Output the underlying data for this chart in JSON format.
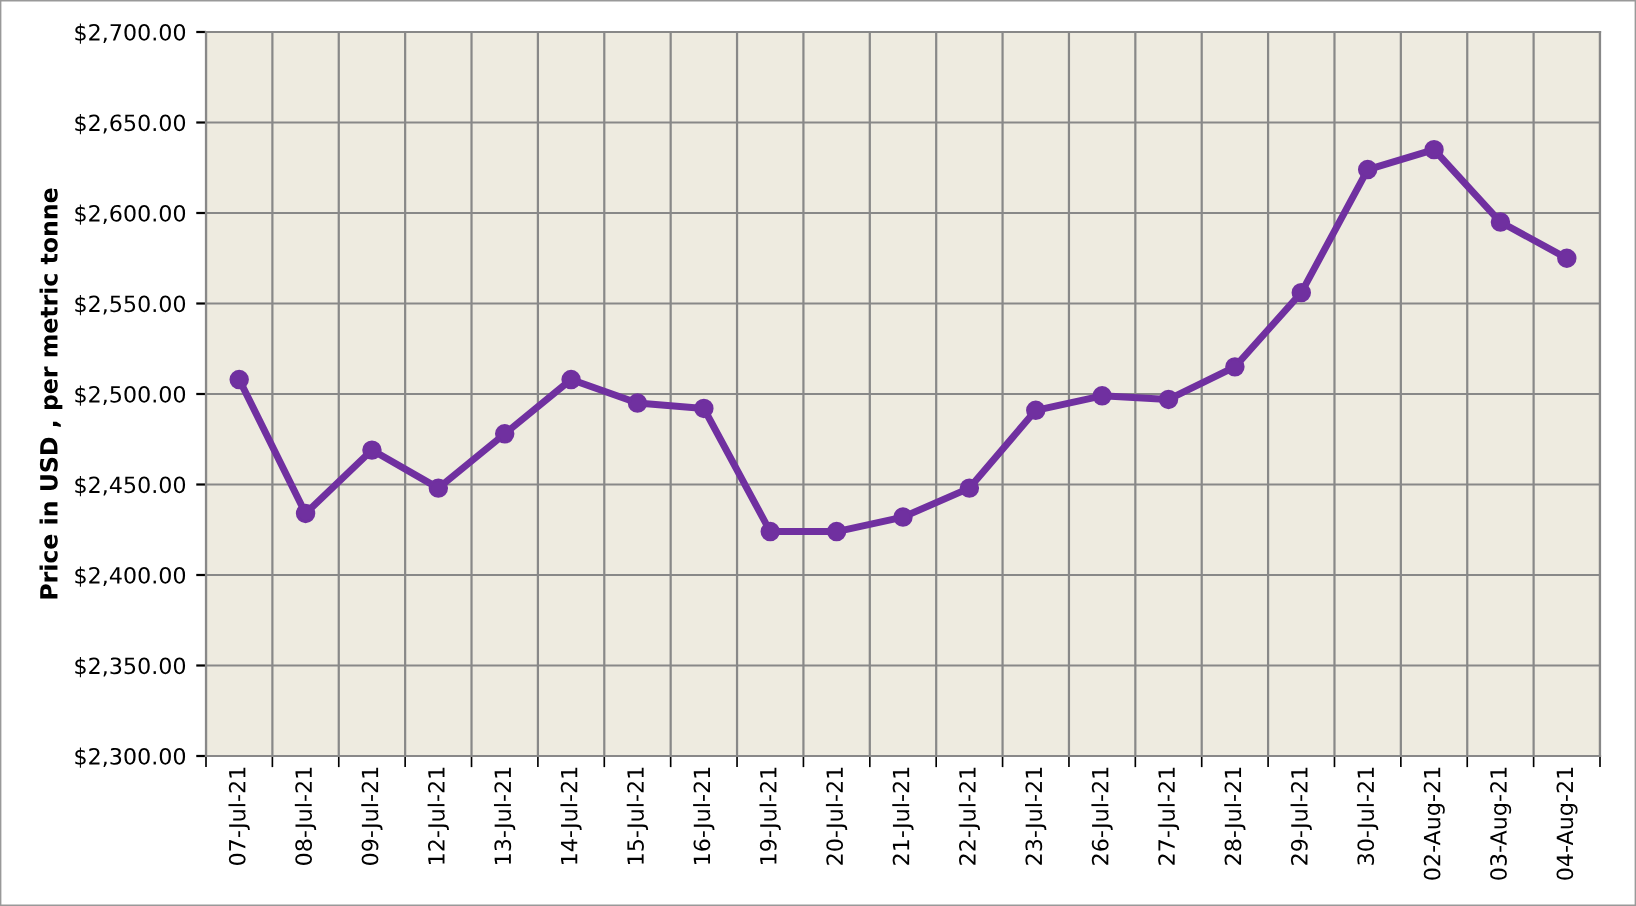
{
  "chart_data": {
    "type": "line",
    "ylabel": "Price in USD , per metric tonne",
    "categories": [
      "07-Jul-21",
      "08-Jul-21",
      "09-Jul-21",
      "12-Jul-21",
      "13-Jul-21",
      "14-Jul-21",
      "15-Jul-21",
      "16-Jul-21",
      "19-Jul-21",
      "20-Jul-21",
      "21-Jul-21",
      "22-Jul-21",
      "23-Jul-21",
      "26-Jul-21",
      "27-Jul-21",
      "28-Jul-21",
      "29-Jul-21",
      "30-Jul-21",
      "02-Aug-21",
      "03-Aug-21",
      "04-Aug-21"
    ],
    "series": [
      {
        "color": "#7030a0",
        "values": [
          2508,
          2434,
          2469,
          2448,
          2478,
          2508,
          2495,
          2492,
          2424,
          2424,
          2432,
          2448,
          2491,
          2499,
          2497,
          2515,
          2556,
          2624,
          2635,
          2595,
          2575
        ]
      }
    ],
    "ylim": [
      2300,
      2700
    ],
    "yticks": [
      {
        "value": 2300,
        "label": "$2,300.00"
      },
      {
        "value": 2350,
        "label": "$2,350.00"
      },
      {
        "value": 2400,
        "label": "$2,400.00"
      },
      {
        "value": 2450,
        "label": "$2,450.00"
      },
      {
        "value": 2500,
        "label": "$2,500.00"
      },
      {
        "value": 2550,
        "label": "$2,550.00"
      },
      {
        "value": 2600,
        "label": "$2,600.00"
      },
      {
        "value": 2650,
        "label": "$2,650.00"
      },
      {
        "value": 2700,
        "label": "$2,700.00"
      }
    ],
    "grid": true,
    "marker": "circle",
    "line_style": "solid",
    "legend": false
  }
}
